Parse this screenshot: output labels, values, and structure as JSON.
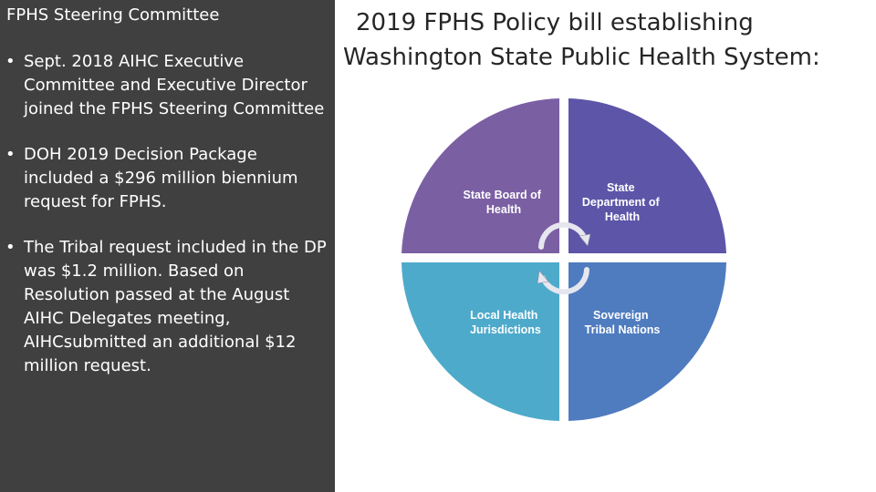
{
  "left_panel": {
    "title": "FPHS Steering Committee",
    "bullets": [
      "Sept. 2018 AIHC Executive Committee and Executive Director joined the FPHS Steering Committee",
      "DOH 2019 Decision Package included a $296 million biennium request for FPHS.",
      "The Tribal request  included in the DP was $1.2 million. Based on Resolution passed at  the August AIHC Delegates meeting, AIHCsubmitted an additional $12 million request."
    ]
  },
  "heading": {
    "line1": "2019 FPHS Policy bill establishing",
    "line2": "Washington State Public Health System:"
  },
  "diagram": {
    "quadrants": [
      {
        "lines": [
          "State Board of",
          "Health"
        ],
        "color": "#7b5fa3"
      },
      {
        "lines": [
          "State",
          "Department of",
          "Health"
        ],
        "color": "#5c55a8"
      },
      {
        "lines": [
          "Local Health",
          "Jurisdictions"
        ],
        "color": "#4eaacb"
      },
      {
        "lines": [
          "Sovereign",
          "Tribal Nations"
        ],
        "color": "#4f7cbf"
      }
    ],
    "arrow_color": "#e6e6ee",
    "arrow_edge": "#8a8aa0"
  }
}
